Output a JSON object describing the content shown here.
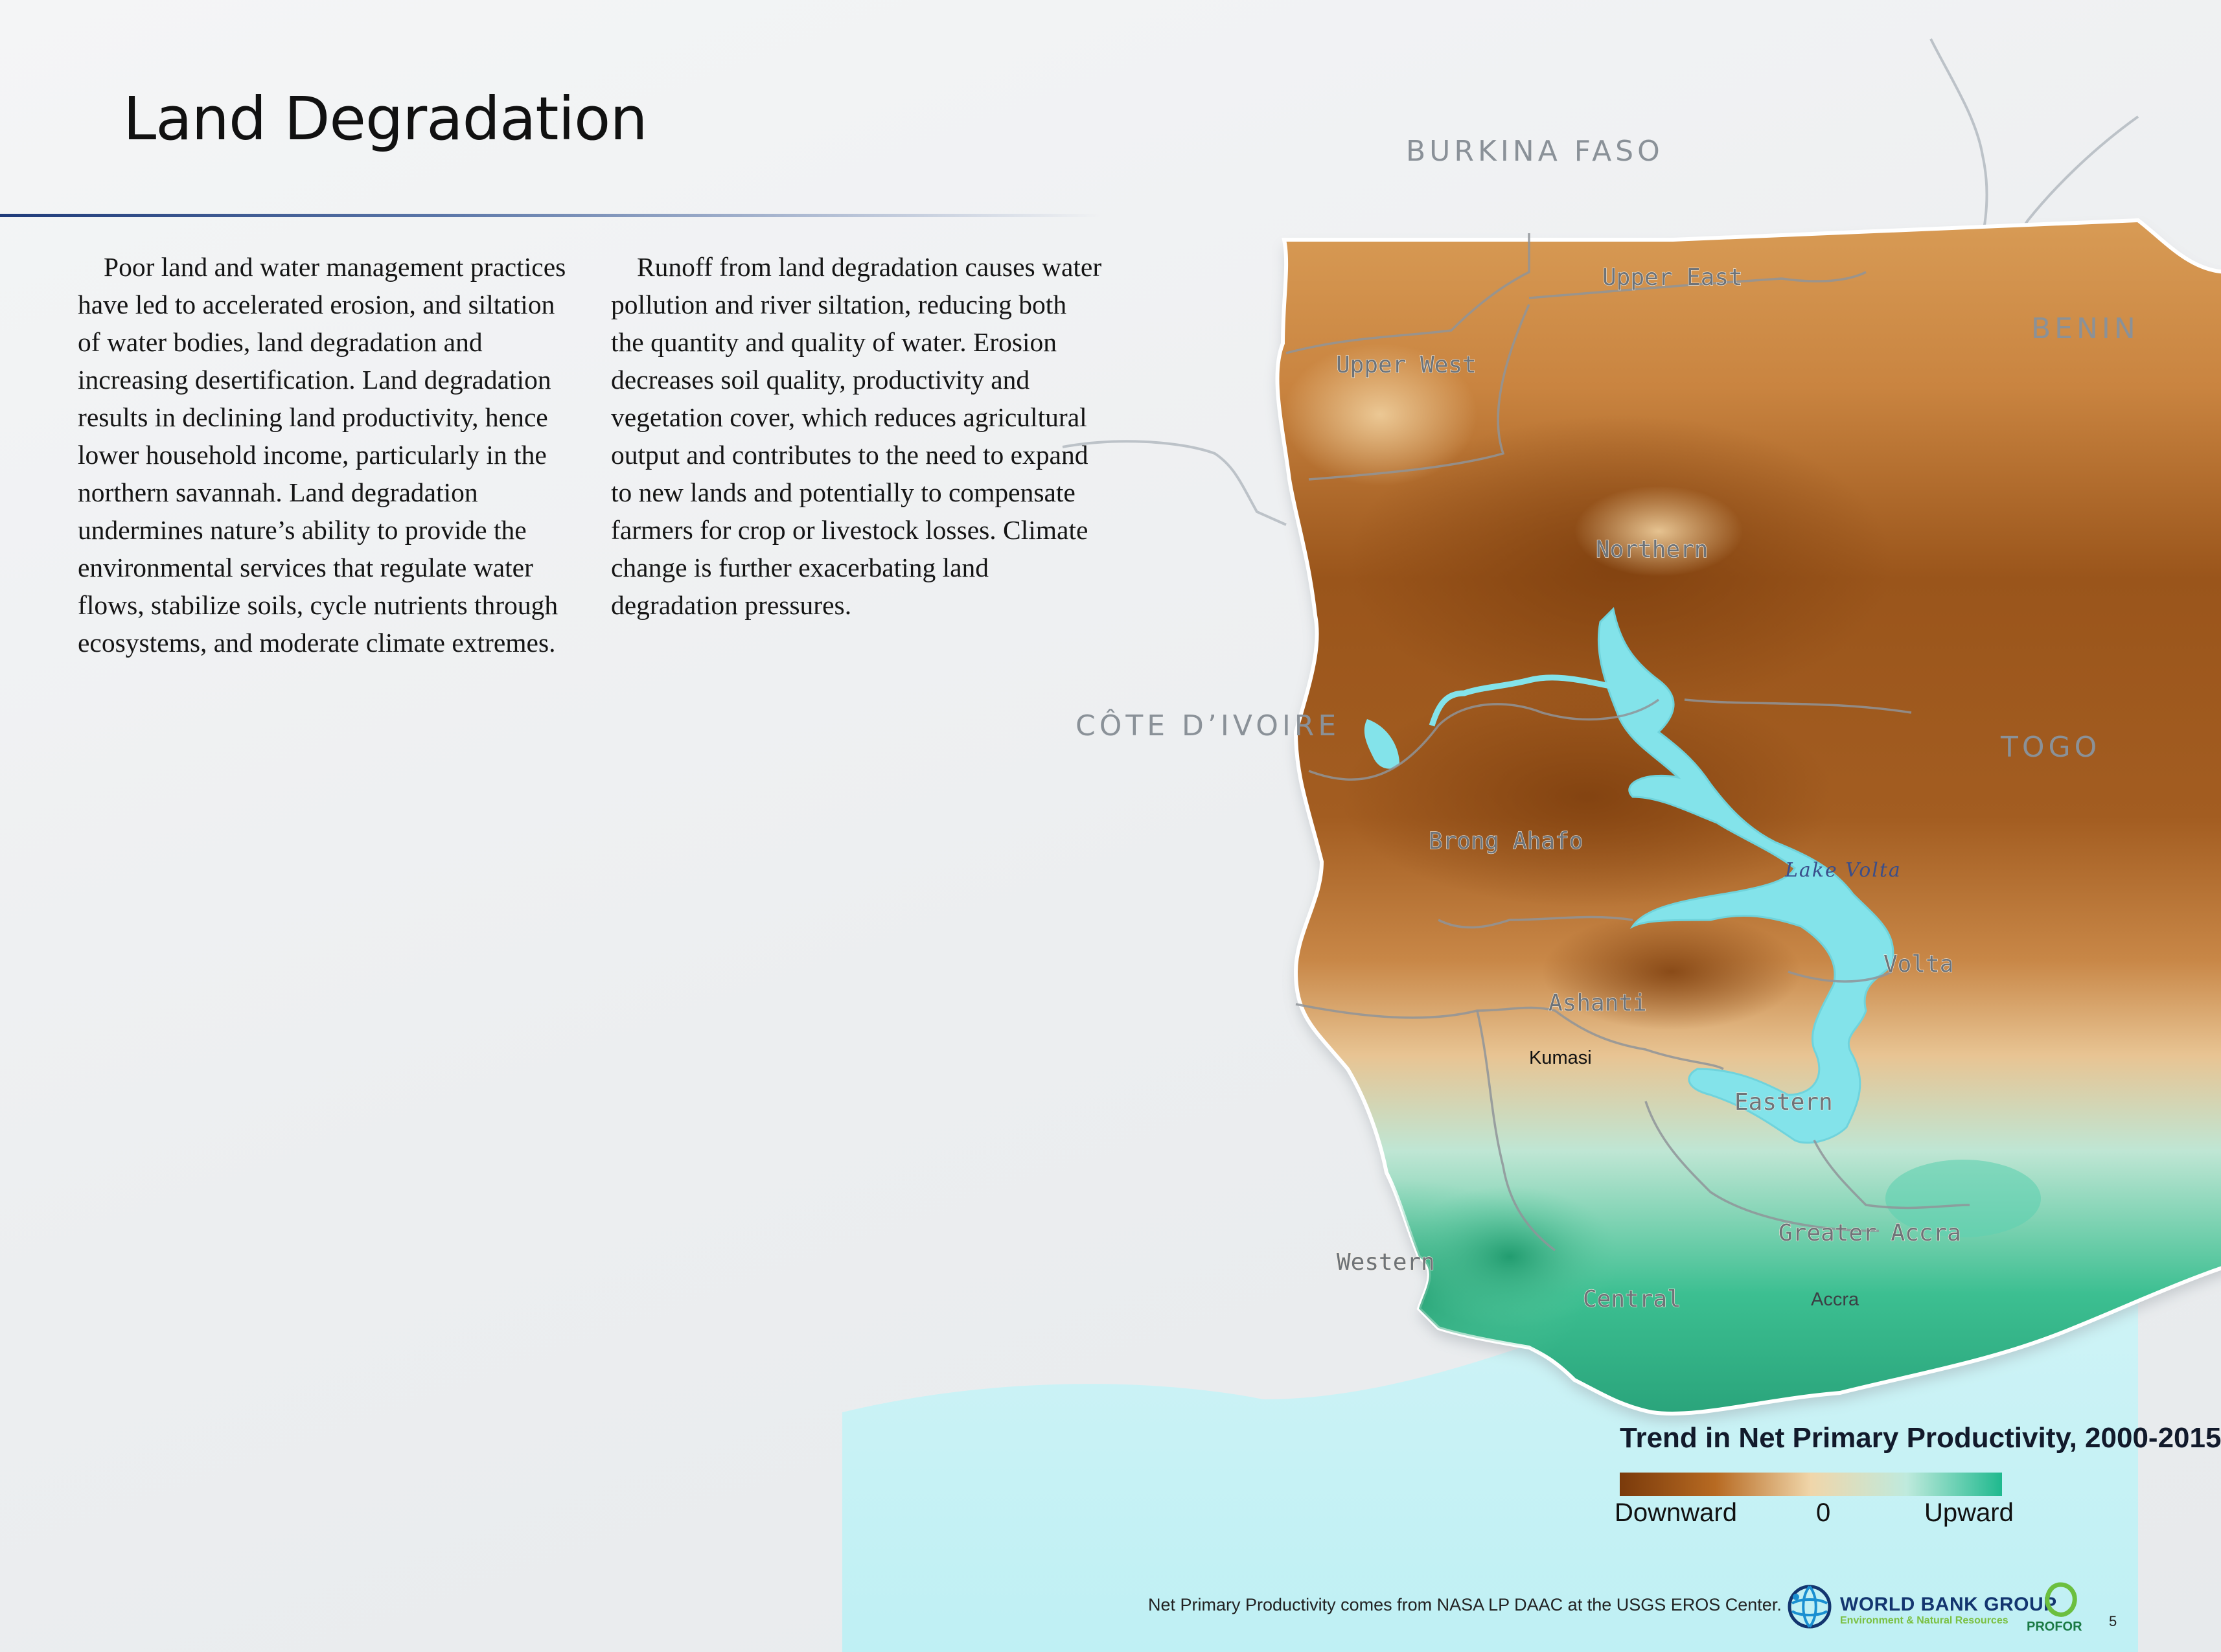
{
  "page": {
    "title": "Land Degradation",
    "page_number": "5"
  },
  "body": {
    "paragraph_left": "Poor land and water management practices have led to accelerated erosion, and siltation of water bodies, land degradation and increasing desertification. Land degradation results in declining land productivity, hence lower household income, particularly in the northern savannah. Land degradation undermines nature’s ability to provide the environmental services that regulate water flows, stabilize soils, cycle nutrients through ecosystems, and moderate climate extremes.",
    "paragraph_right": "Runoff from land degradation causes water pollution and river siltation, reducing both the quantity and quality of water. Erosion decreases soil quality, productivity and vegetation cover, which reduces agricultural output and contributes to the need to expand to new lands and potentially to compensate farmers for crop or livestock losses. Climate change is further exacerbating land degradation pressures."
  },
  "map": {
    "countries": {
      "burkina_faso": "BURKINA FASO",
      "benin": "BENIN",
      "togo": "TOGO",
      "cote_divoire": "CÔTE D’IVOIRE"
    },
    "regions": {
      "upper_east": "Upper East",
      "upper_west": "Upper West",
      "northern": "Northern",
      "brong_ahafo": "Brong Ahafo",
      "ashanti": "Ashanti",
      "volta": "Volta",
      "eastern": "Eastern",
      "greater_accra": "Greater Accra",
      "western": "Western",
      "central": "Central"
    },
    "cities": {
      "kumasi": "Kumasi",
      "accra": "Accra"
    },
    "water": {
      "lake_volta": "Lake Volta"
    },
    "colors": {
      "strong_decline": "#8a4a12",
      "mild_decline": "#d9a15e",
      "neutral": "#f3d9b1",
      "increase": "#2fbf94",
      "water": "#7fe0e6",
      "sea": "#c6f1f4"
    }
  },
  "legend": {
    "title": "Trend in Net Primary Productivity, 2000-2015",
    "label_down": "Downward",
    "label_zero": "0",
    "label_up": "Upward",
    "color_low": "#7a3a0b",
    "color_mid": "#f0d6aa",
    "color_high": "#1fb98e"
  },
  "footer": {
    "source": "Net Primary Productivity comes from NASA LP DAAC at the USGS EROS Center.",
    "wb_name": "WORLD BANK GROUP",
    "wb_sub": "Environment & Natural Resources",
    "profor": "PROFOR"
  }
}
